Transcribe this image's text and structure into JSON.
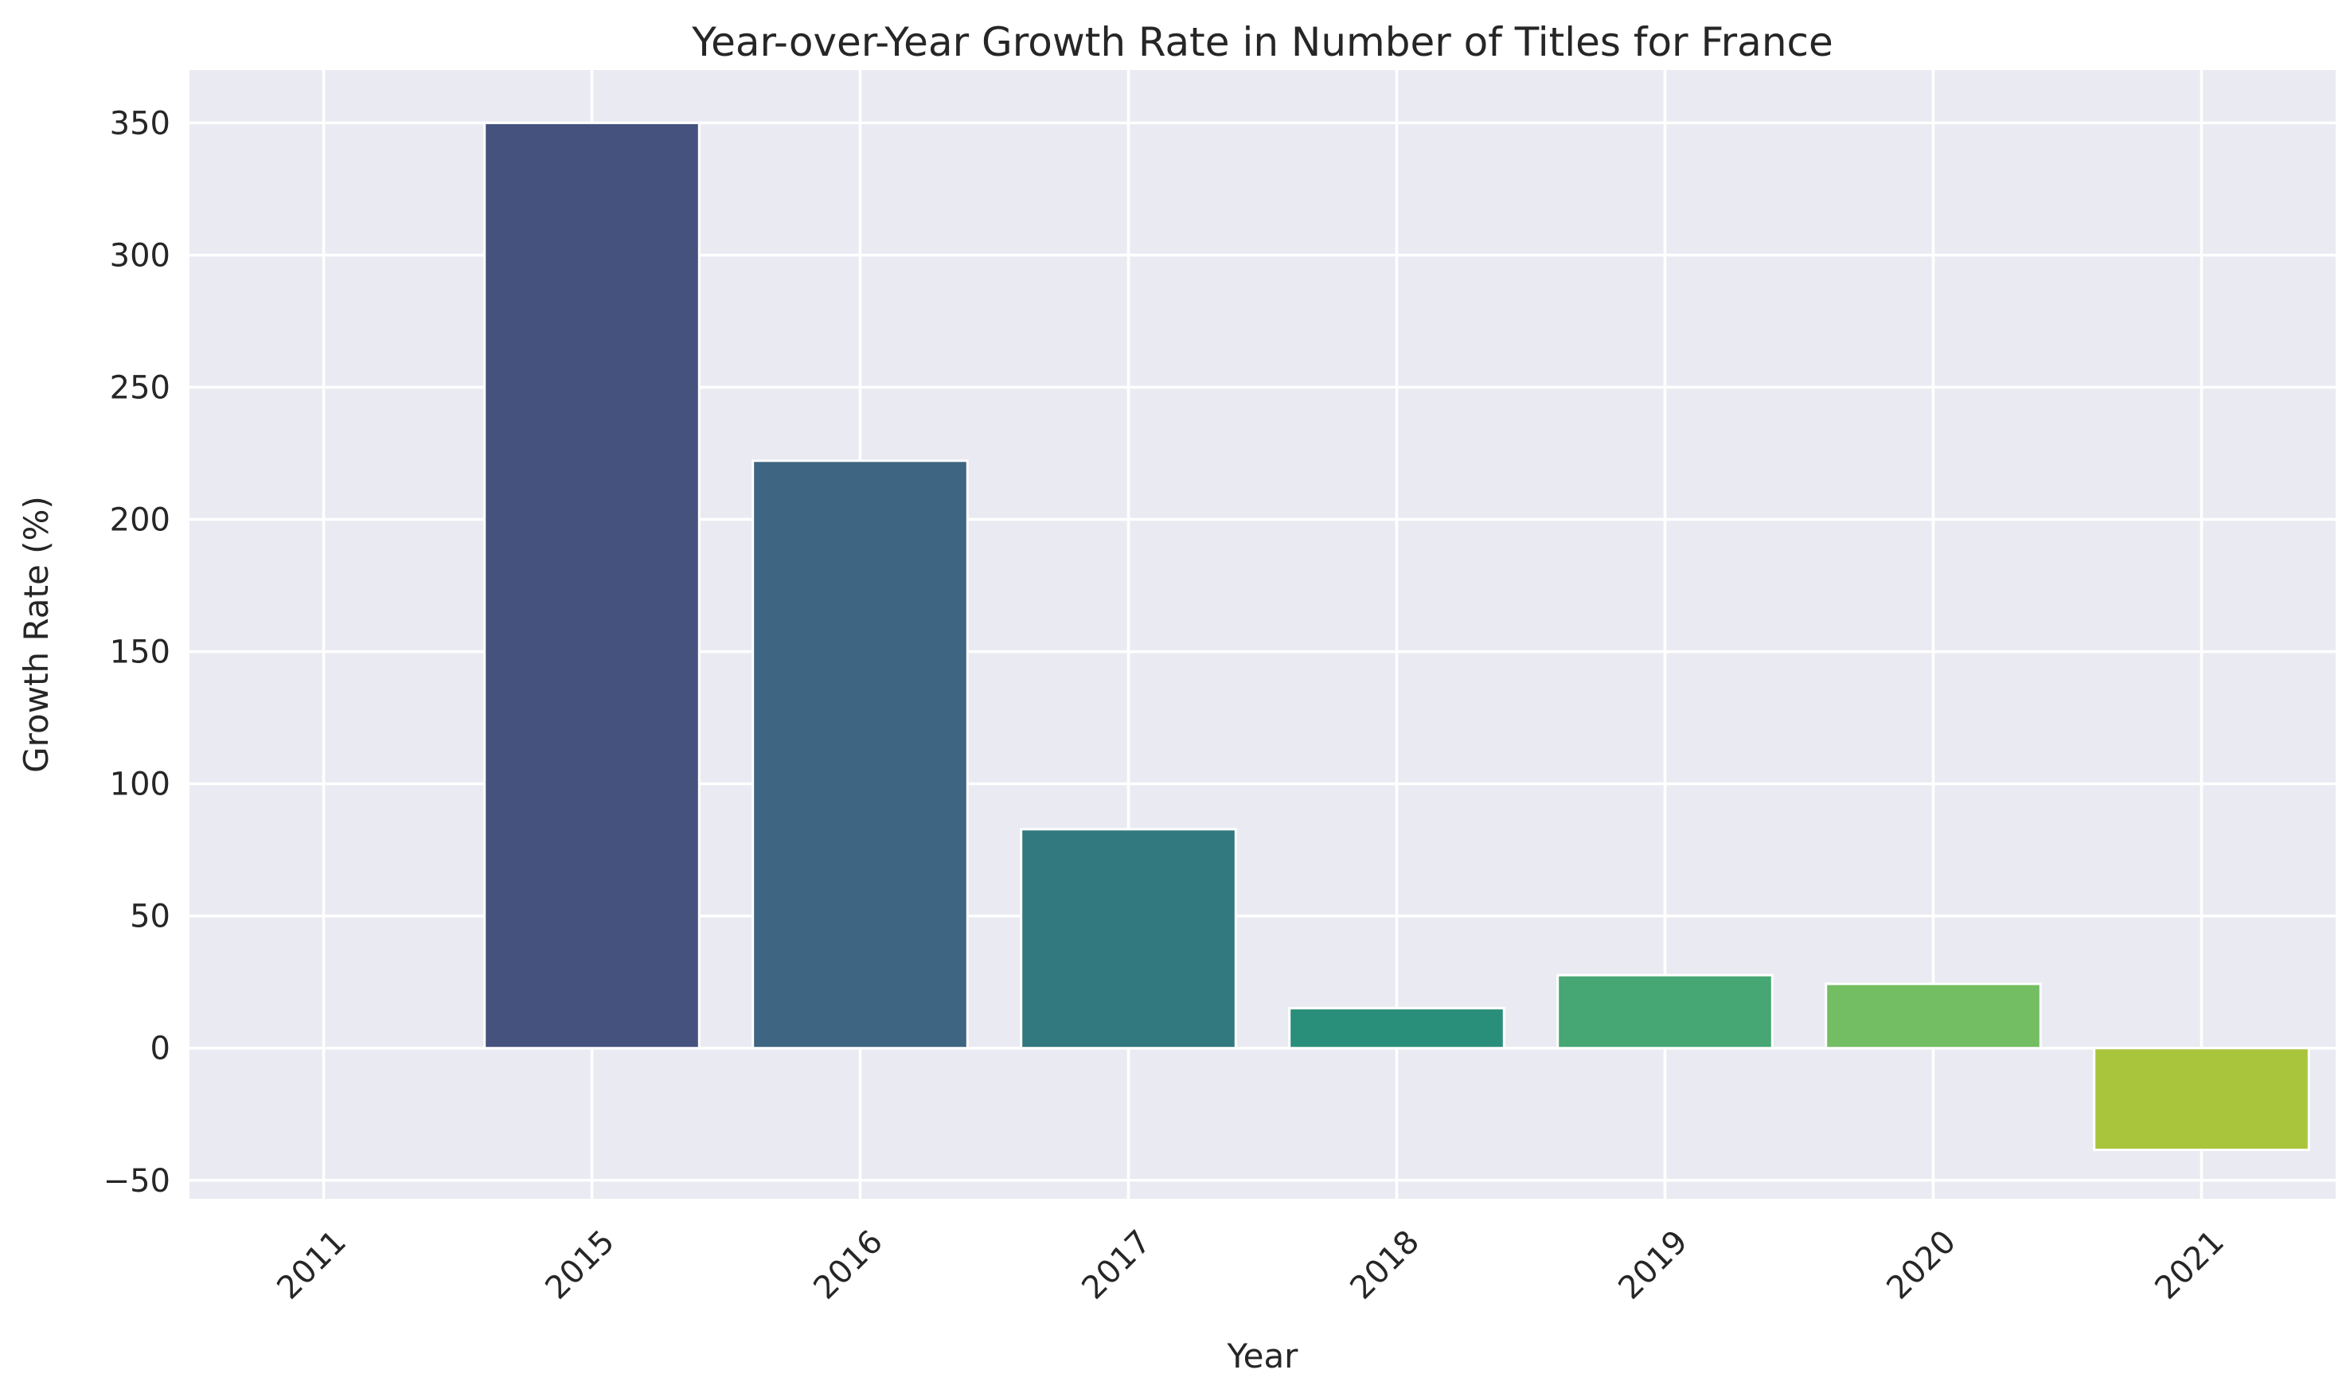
{
  "chart_data": {
    "type": "bar",
    "title": "Year-over-Year Growth Rate in Number of Titles for France",
    "xlabel": "Year",
    "ylabel": "Growth Rate (%)",
    "categories": [
      "2011",
      "2015",
      "2016",
      "2017",
      "2018",
      "2019",
      "2020",
      "2021"
    ],
    "values": [
      0,
      350,
      222.2,
      82.8,
      15.1,
      27.6,
      24.3,
      -38.5
    ],
    "colors": [
      "#482475",
      "#46527e",
      "#3e6581",
      "#32787f",
      "#2a8f7a",
      "#46a674",
      "#73bd63",
      "#a9c53c"
    ],
    "ylim": [
      -57,
      370
    ],
    "yticks": [
      -50,
      0,
      50,
      100,
      150,
      200,
      250,
      300,
      350
    ],
    "ytick_labels": [
      "−50",
      "0",
      "50",
      "100",
      "150",
      "200",
      "250",
      "300",
      "350"
    ],
    "grid": true,
    "legend": "none",
    "background": "#eaeaf2",
    "grid_color": "#ffffff",
    "bar_edge_color": "#ffffff"
  }
}
